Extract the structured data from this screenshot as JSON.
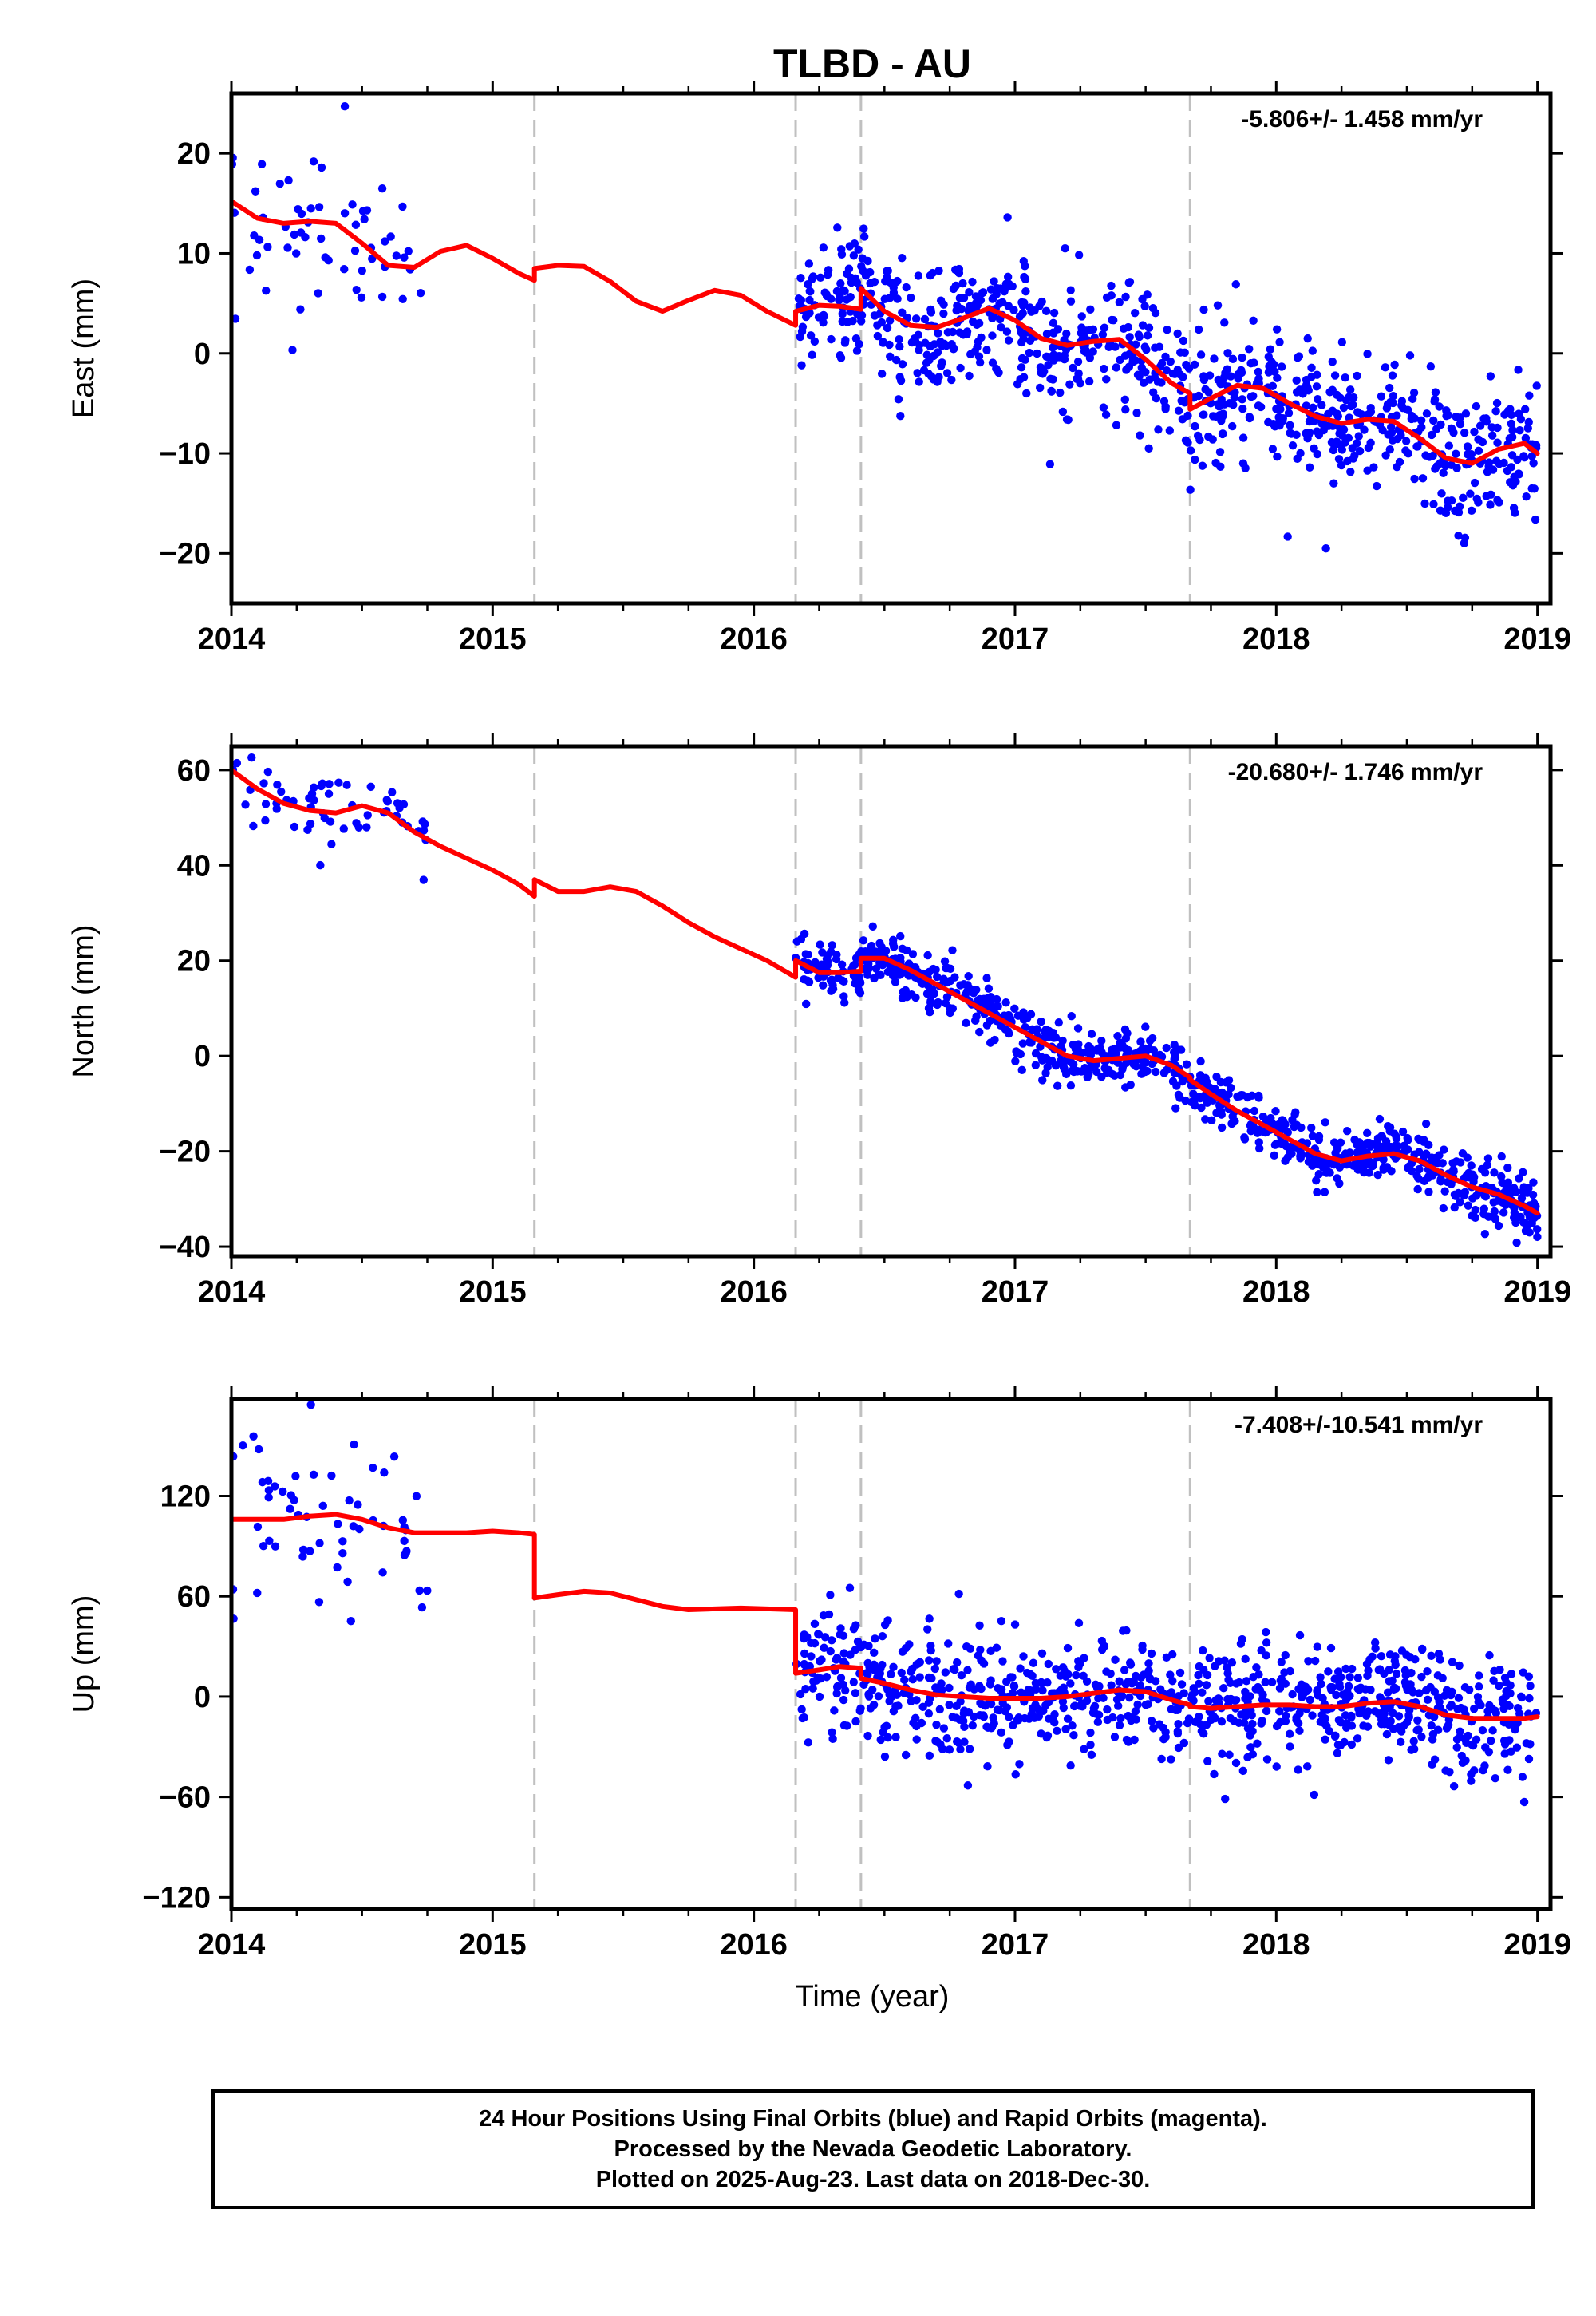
{
  "title": "TLBD - AU",
  "xlabel": "Time (year)",
  "colors": {
    "data_points": "#0000ff",
    "model_line": "#ff0000",
    "event_lines": "#c0c0c0",
    "frame": "#000000"
  },
  "caption": {
    "line1": "24 Hour Positions Using Final Orbits (blue) and Rapid Orbits (magenta).",
    "line2": "Processed by the Nevada Geodetic Laboratory.",
    "line3": "Plotted on 2025-Aug-23. Last data on 2018-Dec-30."
  },
  "chart_data": [
    {
      "type": "scatter",
      "ylabel": "East (mm)",
      "rate_text": "-5.806+/- 1.458 mm/yr",
      "xlim": [
        2014,
        2019.05
      ],
      "ylim": [
        -25,
        26
      ],
      "xticks": [
        2014,
        2015,
        2016,
        2017,
        2018,
        2019
      ],
      "yticks": [
        -20,
        -10,
        0,
        10,
        20
      ],
      "event_lines_x": [
        2015.16,
        2016.16,
        2016.41,
        2017.67
      ],
      "model_segments": [
        {
          "x": [
            2014.0,
            2014.1,
            2014.2,
            2014.3,
            2014.4,
            2014.5,
            2014.6,
            2014.7,
            2014.8,
            2014.9,
            2015.0,
            2015.1,
            2015.16
          ],
          "y": [
            15.2,
            13.5,
            13.0,
            13.2,
            13.0,
            11.0,
            8.8,
            8.6,
            10.2,
            10.8,
            9.5,
            8.0,
            7.3
          ]
        },
        {
          "x": [
            2015.16,
            2015.25,
            2015.35,
            2015.45,
            2015.55,
            2015.65,
            2015.75,
            2015.85,
            2015.95,
            2016.05,
            2016.16
          ],
          "y": [
            8.5,
            8.8,
            8.7,
            7.2,
            5.2,
            4.2,
            5.3,
            6.3,
            5.8,
            4.2,
            2.8
          ]
        },
        {
          "x": [
            2016.16,
            2016.25,
            2016.33,
            2016.41
          ],
          "y": [
            4.2,
            4.8,
            4.7,
            4.4
          ]
        },
        {
          "x": [
            2016.41,
            2016.5,
            2016.6,
            2016.7,
            2016.8,
            2016.9,
            2017.0,
            2017.1,
            2017.2,
            2017.3,
            2017.4,
            2017.5,
            2017.6,
            2017.67
          ],
          "y": [
            6.5,
            4.2,
            2.8,
            2.6,
            3.5,
            4.5,
            3.3,
            1.5,
            0.8,
            1.2,
            1.4,
            -0.6,
            -3.0,
            -4.0
          ]
        },
        {
          "x": [
            2017.67,
            2017.75,
            2017.85,
            2017.95,
            2018.05,
            2018.15,
            2018.25,
            2018.35,
            2018.45,
            2018.55,
            2018.65,
            2018.75,
            2018.85,
            2018.95,
            2019.0
          ],
          "y": [
            -5.6,
            -4.5,
            -3.2,
            -3.5,
            -5.0,
            -6.3,
            -7.0,
            -6.6,
            -6.8,
            -8.5,
            -10.5,
            -11.0,
            -9.6,
            -9.0,
            -10.0
          ]
        }
      ]
    },
    {
      "type": "scatter",
      "ylabel": "North (mm)",
      "rate_text": "-20.680+/- 1.746 mm/yr",
      "xlim": [
        2014,
        2019.05
      ],
      "ylim": [
        -42,
        65
      ],
      "xticks": [
        2014,
        2015,
        2016,
        2017,
        2018,
        2019
      ],
      "yticks": [
        -40,
        -20,
        0,
        20,
        40,
        60
      ],
      "event_lines_x": [
        2015.16,
        2016.16,
        2016.41,
        2017.67
      ],
      "model_segments": [
        {
          "x": [
            2014.0,
            2014.1,
            2014.2,
            2014.3,
            2014.4,
            2014.5,
            2014.6,
            2014.7,
            2014.8,
            2014.9,
            2015.0,
            2015.1,
            2015.16
          ],
          "y": [
            60.0,
            56.0,
            53.0,
            51.5,
            51.0,
            52.5,
            51.0,
            47.0,
            44.0,
            41.5,
            39.0,
            36.0,
            33.5
          ]
        },
        {
          "x": [
            2015.16,
            2015.25,
            2015.35,
            2015.45,
            2015.55,
            2015.65,
            2015.75,
            2015.85,
            2015.95,
            2016.05,
            2016.16
          ],
          "y": [
            37.0,
            34.5,
            34.5,
            35.5,
            34.5,
            31.5,
            28.0,
            25.0,
            22.5,
            20.0,
            16.5
          ]
        },
        {
          "x": [
            2016.16,
            2016.25,
            2016.33,
            2016.41
          ],
          "y": [
            20.0,
            17.5,
            17.5,
            17.8
          ]
        },
        {
          "x": [
            2016.41,
            2016.5,
            2016.6,
            2016.7,
            2016.8,
            2016.9,
            2017.0,
            2017.1,
            2017.2,
            2017.3,
            2017.4,
            2017.5,
            2017.6,
            2017.67
          ],
          "y": [
            20.5,
            20.5,
            18.0,
            15.0,
            12.0,
            9.0,
            6.0,
            3.0,
            0.0,
            -1.0,
            -0.5,
            0.0,
            -2.0,
            -4.5
          ]
        },
        {
          "x": [
            2017.67,
            2017.75,
            2017.85,
            2017.95,
            2018.05,
            2018.15,
            2018.25,
            2018.35,
            2018.45,
            2018.55,
            2018.65,
            2018.75,
            2018.85,
            2018.95,
            2019.0
          ],
          "y": [
            -5.0,
            -8.0,
            -11.5,
            -14.5,
            -17.5,
            -20.5,
            -22.0,
            -21.0,
            -20.5,
            -22.0,
            -25.0,
            -27.5,
            -29.0,
            -31.5,
            -33.0
          ]
        }
      ]
    },
    {
      "type": "scatter",
      "ylabel": "Up (mm)",
      "rate_text": "-7.408+/-10.541 mm/yr",
      "xlim": [
        2014,
        2019.05
      ],
      "ylim": [
        -127,
        178
      ],
      "xticks": [
        2014,
        2015,
        2016,
        2017,
        2018,
        2019
      ],
      "yticks": [
        -120,
        -60,
        0,
        60,
        120
      ],
      "event_lines_x": [
        2015.16,
        2016.16,
        2016.41,
        2017.67
      ],
      "model_segments": [
        {
          "x": [
            2014.0,
            2014.1,
            2014.2,
            2014.3,
            2014.4,
            2014.5,
            2014.6,
            2014.7,
            2014.8,
            2014.9,
            2015.0,
            2015.1,
            2015.16
          ],
          "y": [
            106.0,
            106.0,
            106.0,
            108.0,
            109.0,
            106.0,
            101.0,
            98.0,
            98.0,
            98.0,
            99.0,
            98.0,
            97.0
          ]
        },
        {
          "x": [
            2015.16,
            2015.25,
            2015.35,
            2015.45,
            2015.55,
            2015.65,
            2015.75,
            2015.85,
            2015.95,
            2016.05,
            2016.16
          ],
          "y": [
            59.0,
            61.0,
            63.0,
            62.0,
            58.0,
            54.0,
            52.0,
            52.5,
            53.0,
            52.5,
            52.0
          ]
        },
        {
          "x": [
            2016.16,
            2016.25,
            2016.33,
            2016.41
          ],
          "y": [
            14.0,
            16.0,
            18.0,
            17.0
          ]
        },
        {
          "x": [
            2016.41,
            2016.5,
            2016.6,
            2016.7,
            2016.8,
            2016.9,
            2017.0,
            2017.1,
            2017.2,
            2017.3,
            2017.4,
            2017.5,
            2017.6,
            2017.67
          ],
          "y": [
            11.0,
            8.0,
            4.0,
            1.0,
            0.0,
            -1.0,
            -1.0,
            -1.0,
            0.0,
            2.0,
            4.0,
            3.0,
            -2.0,
            -5.0
          ]
        },
        {
          "x": [
            2017.67,
            2017.75,
            2017.85,
            2017.95,
            2018.05,
            2018.15,
            2018.25,
            2018.35,
            2018.45,
            2018.55,
            2018.65,
            2018.75,
            2018.85,
            2018.95,
            2019.0
          ],
          "y": [
            -6.0,
            -7.0,
            -6.0,
            -5.0,
            -5.0,
            -6.0,
            -6.0,
            -4.0,
            -3.0,
            -6.0,
            -11.0,
            -13.0,
            -13.0,
            -13.0,
            -12.0
          ]
        }
      ]
    }
  ]
}
